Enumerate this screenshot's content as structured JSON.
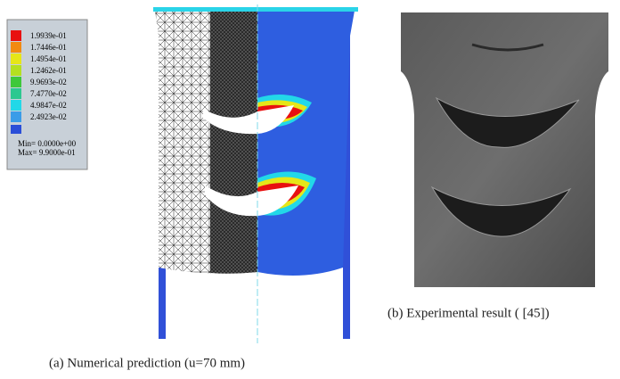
{
  "legend": {
    "items": [
      {
        "label": "1.9939e-01",
        "color": "#e81010"
      },
      {
        "label": "1.7446e-01",
        "color": "#f28a10"
      },
      {
        "label": "1.4954e-01",
        "color": "#e6e618"
      },
      {
        "label": "1.2462e-01",
        "color": "#b4e020"
      },
      {
        "label": "9.9693e-02",
        "color": "#3ec83a"
      },
      {
        "label": "7.4770e-02",
        "color": "#2cc890"
      },
      {
        "label": "4.9847e-02",
        "color": "#22d8e8"
      },
      {
        "label": "2.4923e-02",
        "color": "#3a9ce8"
      }
    ],
    "min": "Min= 0.0000e+00",
    "max": "Max= 9.9000e-01"
  },
  "captions": {
    "a": "(a) Numerical prediction (u=70 mm)",
    "b": "(b) Experimental result ( [45])"
  }
}
